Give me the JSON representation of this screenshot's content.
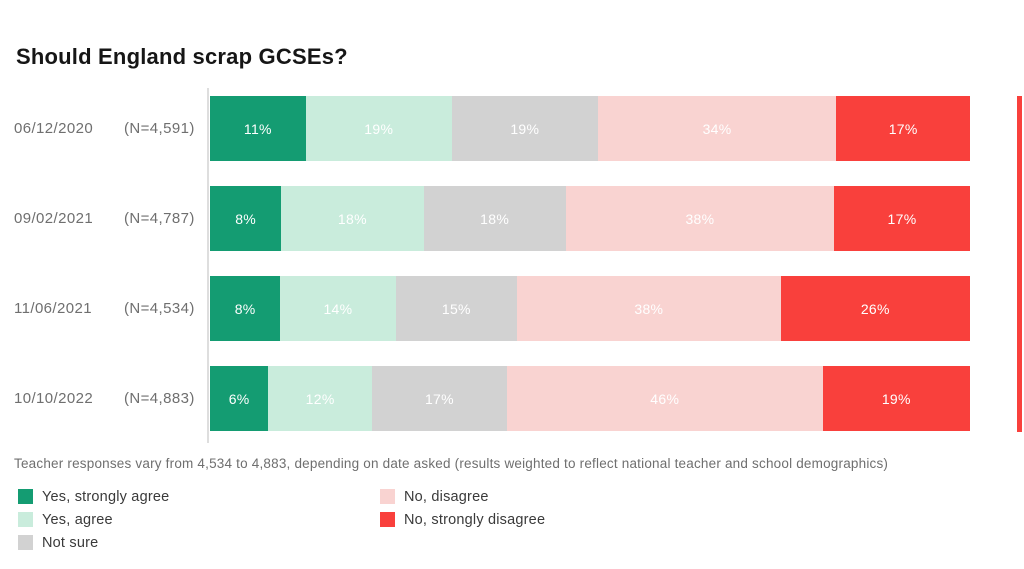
{
  "footnote": "Teacher responses vary from 4,534 to 4,883, depending on date asked (results weighted to reflect national teacher and school demographics)",
  "chart_data": {
    "type": "bar",
    "stacked": true,
    "orientation": "horizontal",
    "title": "Should England scrap GCSEs?",
    "categories": [
      "06/12/2020",
      "09/02/2021",
      "11/06/2021",
      "10/10/2022"
    ],
    "sample_labels": [
      "(N=4,591)",
      "(N=4,787)",
      "(N=4,534)",
      "(N=4,883)"
    ],
    "value_suffix": "%",
    "xlim": [
      0,
      100
    ],
    "grid": false,
    "legend_position": "bottom-left-two-columns",
    "series": [
      {
        "name": "Yes, strongly agree",
        "color": "#149c72",
        "values": [
          11,
          8,
          8,
          6
        ]
      },
      {
        "name": "Yes, agree",
        "color": "#c9ecdc",
        "values": [
          19,
          18,
          14,
          12
        ]
      },
      {
        "name": "Not sure",
        "color": "#d2d2d2",
        "values": [
          19,
          18,
          15,
          17
        ]
      },
      {
        "name": "No, disagree",
        "color": "#f9d3d1",
        "values": [
          34,
          38,
          38,
          46
        ]
      },
      {
        "name": "No, strongly disagree",
        "color": "#f9403c",
        "values": [
          17,
          17,
          26,
          19
        ]
      }
    ],
    "legend_columns": [
      [
        0,
        1,
        2
      ],
      [
        3,
        4
      ]
    ]
  },
  "accents": {
    "axis_line": "#dedede",
    "right_marker": "#f9403c",
    "row_label_text": "#6f6f6f",
    "footnote_text": "#6f6f6f",
    "legend_text": "#3a3a3a",
    "title_text": "#161616",
    "bar_value_text": "#ffffff",
    "background": "#ffffff"
  }
}
